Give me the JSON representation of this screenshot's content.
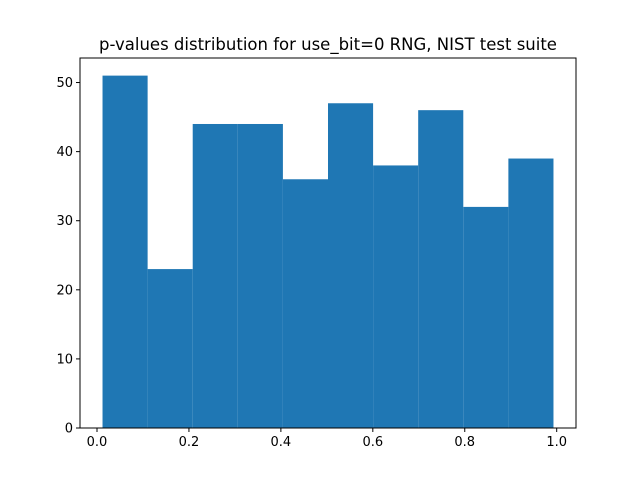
{
  "chart_data": {
    "type": "bar",
    "title": "p-values distribution for use_bit=0 RNG, NIST test suite",
    "xlabel": "",
    "ylabel": "",
    "bin_edges": [
      0.012,
      0.1101,
      0.2082,
      0.3063,
      0.4044,
      0.5025,
      0.6006,
      0.6987,
      0.7968,
      0.8949,
      0.993
    ],
    "values": [
      51,
      23,
      44,
      44,
      36,
      47,
      38,
      46,
      32,
      39
    ],
    "xlim": [
      -0.037,
      1.042
    ],
    "ylim": [
      0,
      53.55
    ],
    "xticks": [
      0.0,
      0.2,
      0.4,
      0.6,
      0.8,
      1.0
    ],
    "xtick_labels": [
      "0.0",
      "0.2",
      "0.4",
      "0.6",
      "0.8",
      "1.0"
    ],
    "yticks": [
      0,
      10,
      20,
      30,
      40,
      50
    ],
    "ytick_labels": [
      "0",
      "10",
      "20",
      "30",
      "40",
      "50"
    ],
    "bar_color": "#1f77b4",
    "grid": false,
    "legend": "none"
  }
}
